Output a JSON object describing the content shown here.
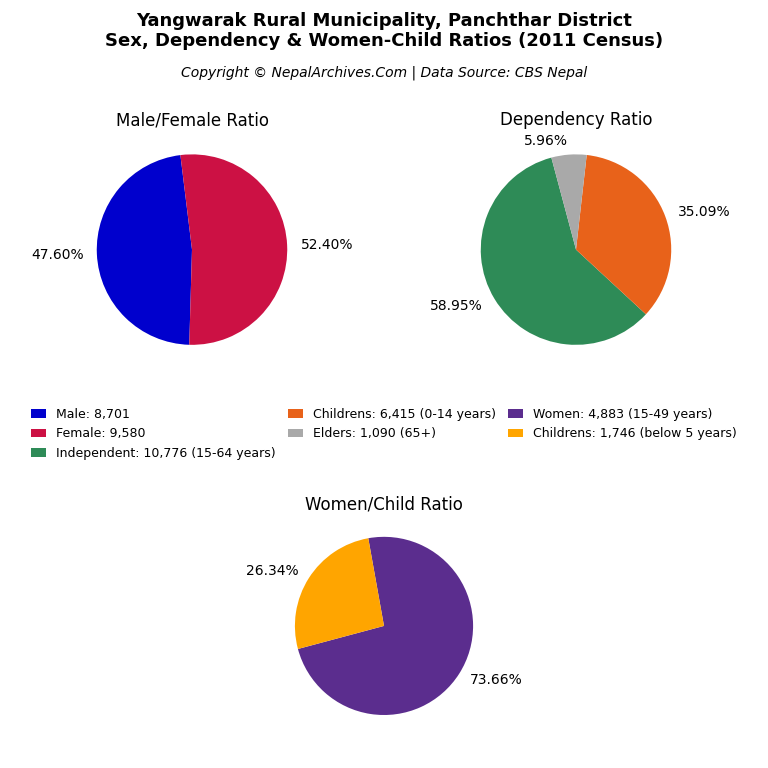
{
  "title": "Yangwarak Rural Municipality, Panchthar District\nSex, Dependency & Women-Child Ratios (2011 Census)",
  "subtitle": "Copyright © NepalArchives.Com | Data Source: CBS Nepal",
  "chart_data": [
    {
      "type": "pie",
      "title": "Male/Female Ratio",
      "categories": [
        "Male: 8,701",
        "Female: 9,580"
      ],
      "values": [
        47.6,
        52.4
      ],
      "value_labels": [
        "47.60%",
        "52.40%"
      ],
      "colors": [
        "#0000CD",
        "#CC1144"
      ],
      "data_labels": true,
      "legend": "center"
    },
    {
      "type": "pie",
      "title": "Dependency Ratio",
      "categories": [
        "Independent: 10,776 (15-64 years)",
        "Childrens: 6,415 (0-14 years)",
        "Elders: 1,090 (65+)"
      ],
      "values": [
        58.95,
        35.09,
        5.96
      ],
      "value_labels": [
        "58.95%",
        "35.09%",
        "5.96%"
      ],
      "colors": [
        "#2E8B57",
        "#E8621A",
        "#A9A9A9"
      ],
      "data_labels": true,
      "legend": "center"
    },
    {
      "type": "pie",
      "title": "Women/Child Ratio",
      "categories": [
        "Women: 4,883 (15-49 years)",
        "Childrens: 1,746 (below 5 years)"
      ],
      "values": [
        73.66,
        26.34
      ],
      "value_labels": [
        "73.66%",
        "26.34%"
      ],
      "colors": [
        "#5B2D8E",
        "#FFA500"
      ],
      "data_labels": true,
      "legend": "center"
    }
  ]
}
